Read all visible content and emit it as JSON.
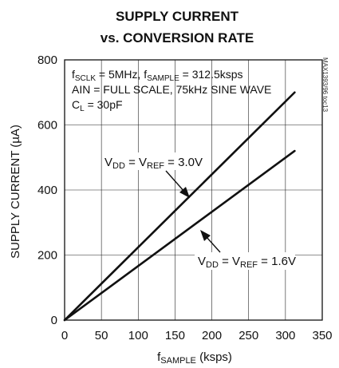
{
  "chart_data": {
    "type": "line",
    "title_line1": "SUPPLY CURRENT",
    "title_line2": "vs. CONVERSION RATE",
    "xlabel_main": "f",
    "xlabel_sub": "SAMPLE",
    "xlabel_unit": " (ksps)",
    "ylabel": "SUPPLY CURRENT (µA)",
    "xlim": [
      0,
      350
    ],
    "ylim": [
      0,
      800
    ],
    "xticks": [
      0,
      50,
      100,
      150,
      200,
      250,
      300,
      350
    ],
    "yticks": [
      0,
      200,
      400,
      600,
      800
    ],
    "grid": true,
    "conditions": {
      "line1": {
        "f1": "f",
        "s1": "SCLK",
        "t1": " = 5MHz, f",
        "s2": "SAMPLE",
        "t2": " = 312.5ksps"
      },
      "line2": "AIN = FULL SCALE, 75kHz SINE WAVE",
      "line3": {
        "c": "C",
        "sub": "L",
        "rest": " = 30pF"
      }
    },
    "series": [
      {
        "name": "VDD = VREF = 3.0V",
        "label": {
          "a": "V",
          "sa": "DD",
          "b": " = V",
          "sb": "REF",
          "c": " = 3.0V"
        },
        "x": [
          0,
          312.5
        ],
        "y": [
          0,
          700
        ]
      },
      {
        "name": "VDD = VREF = 1.6V",
        "label": {
          "a": "V",
          "sa": "DD",
          "b": " = V",
          "sb": "REF",
          "c": " = 1.6V"
        },
        "x": [
          0,
          312.5
        ],
        "y": [
          0,
          520
        ]
      }
    ],
    "side_code": "MAX1393/96 toc13"
  }
}
